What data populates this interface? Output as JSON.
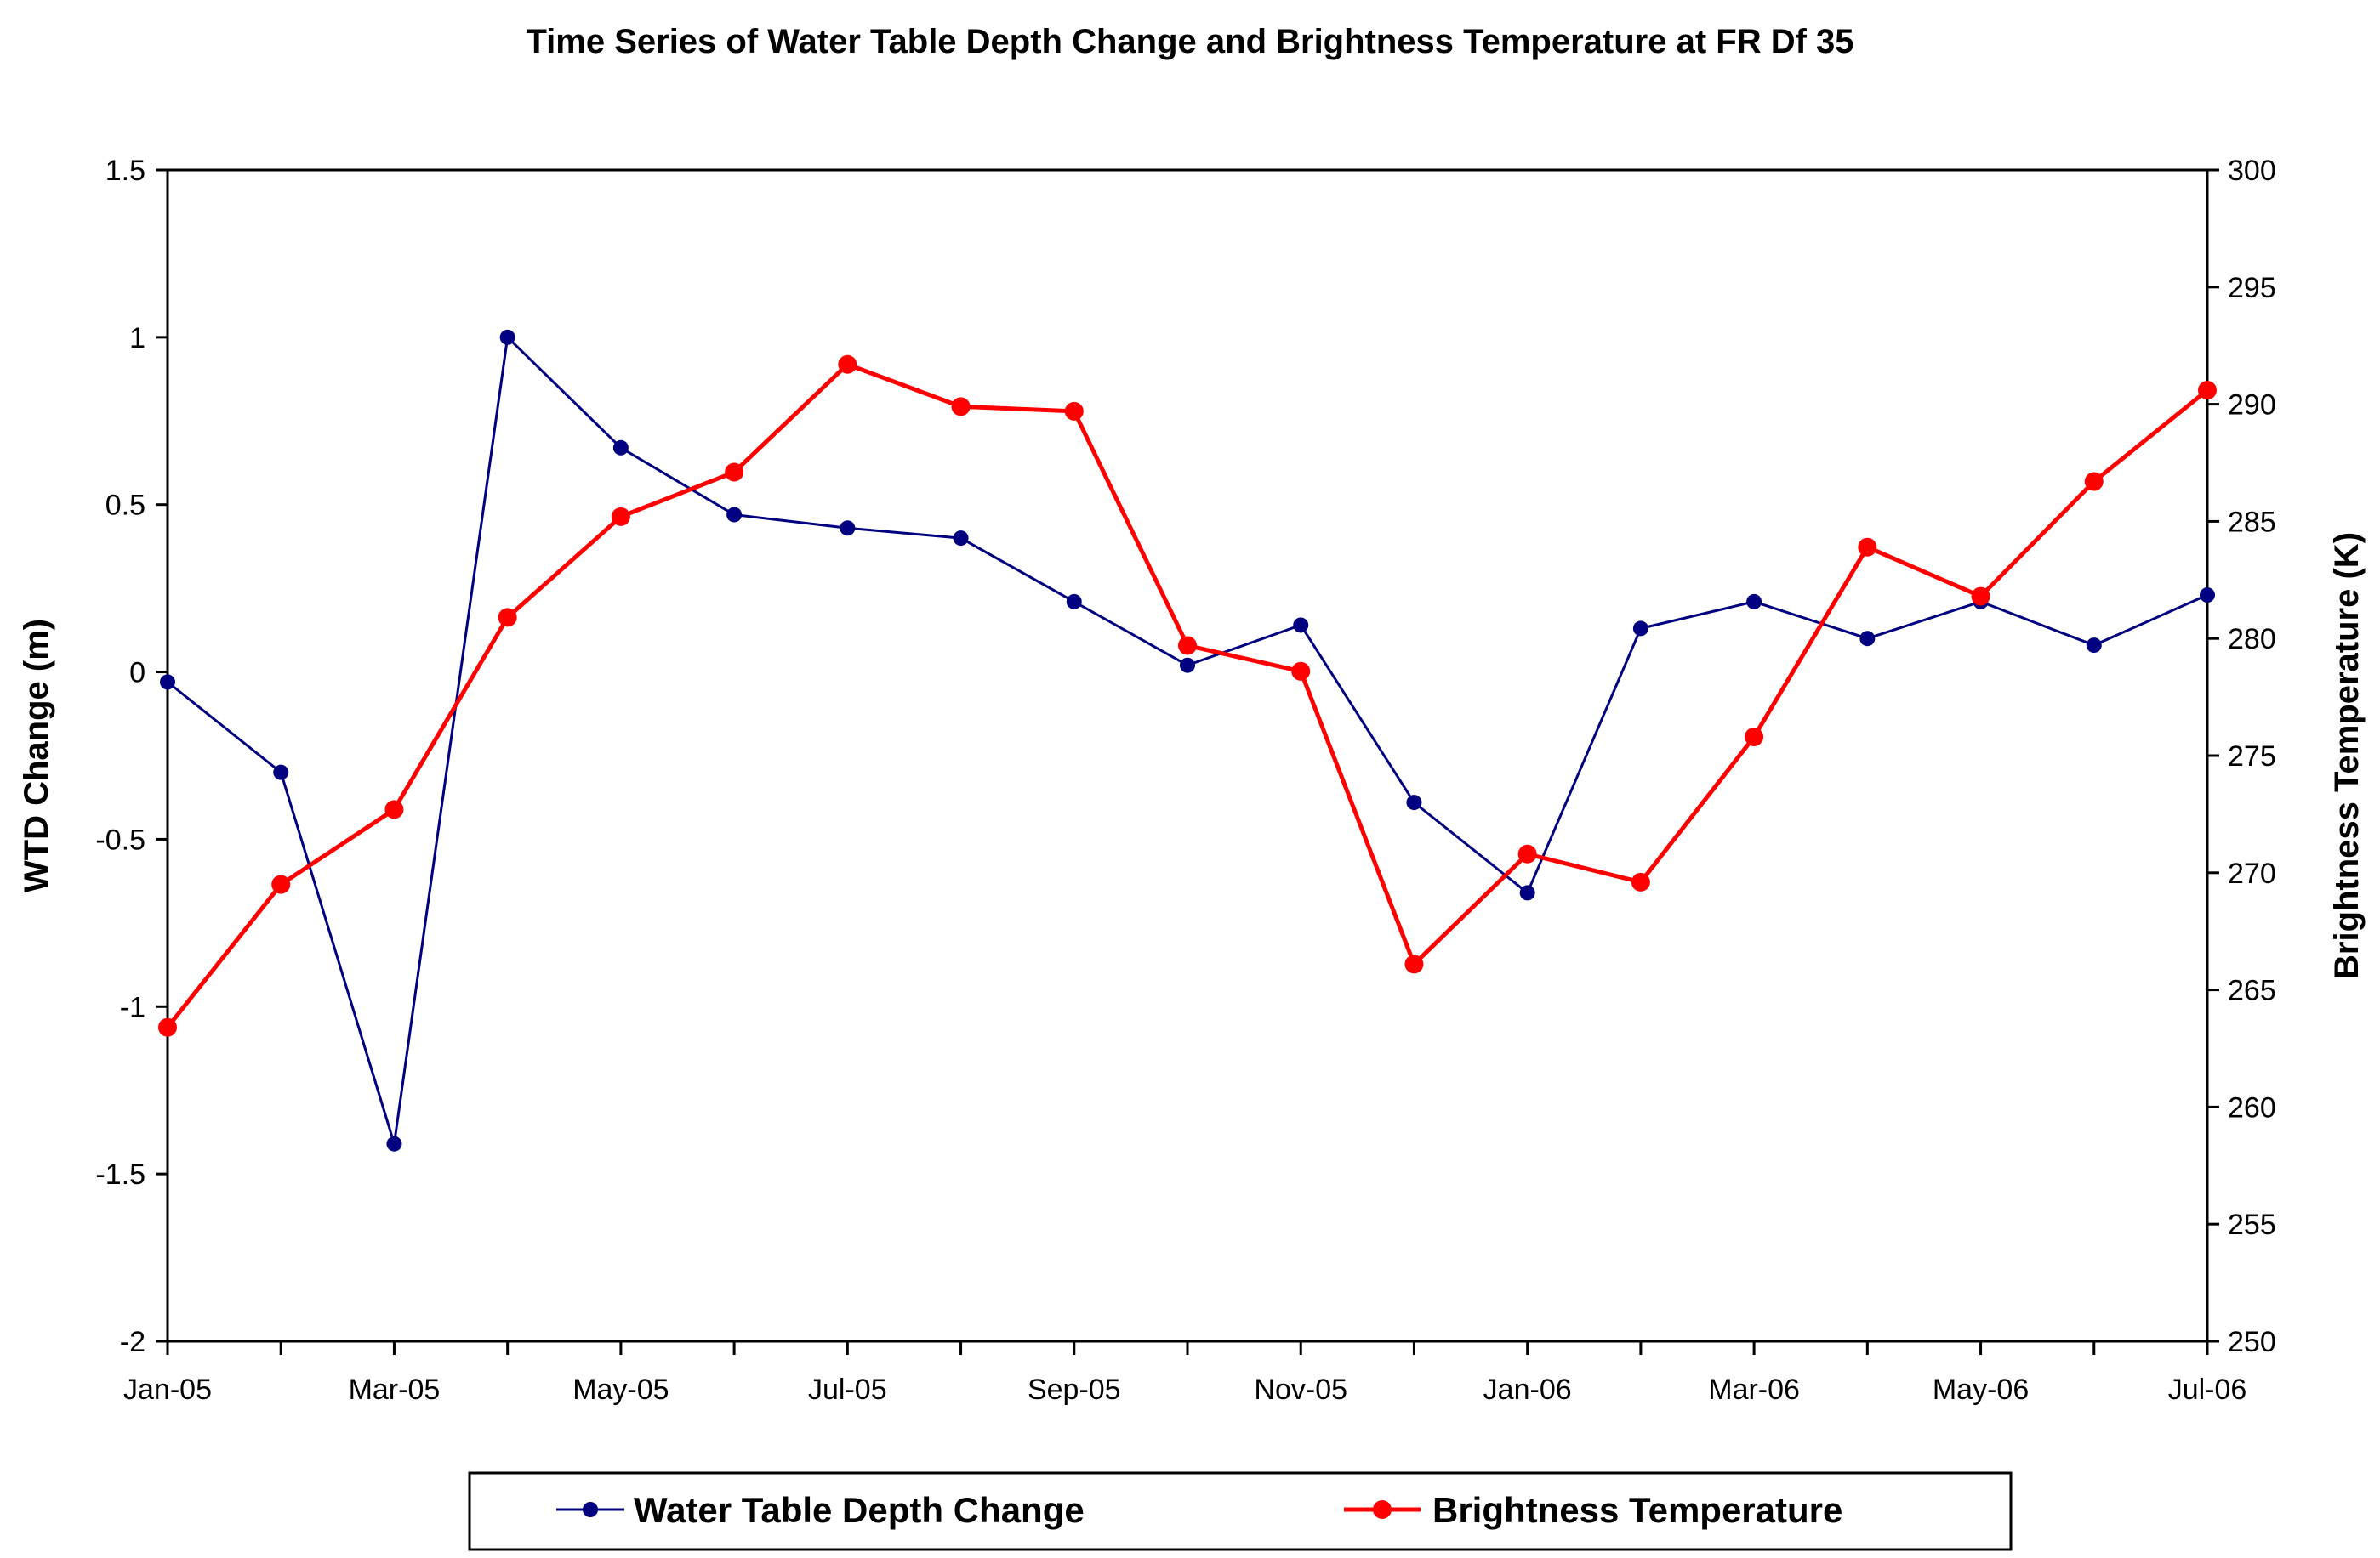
{
  "chart_data": {
    "type": "line",
    "title": "Time Series of Water Table Depth Change and Brightness Temperature at FR Df 35",
    "categories": [
      "Jan-05",
      "Feb-05",
      "Mar-05",
      "Apr-05",
      "May-05",
      "Jun-05",
      "Jul-05",
      "Aug-05",
      "Sep-05",
      "Oct-05",
      "Nov-05",
      "Dec-05",
      "Jan-06",
      "Feb-06",
      "Mar-06",
      "Apr-06",
      "May-06",
      "Jun-06",
      "Jul-06"
    ],
    "x_tick_labels": [
      "Jan-05",
      "",
      "Mar-05",
      "",
      "May-05",
      "",
      "Jul-05",
      "",
      "Sep-05",
      "",
      "Nov-05",
      "",
      "Jan-06",
      "",
      "Mar-06",
      "",
      "May-06",
      "",
      "Jul-06"
    ],
    "y_left": {
      "label": "WTD Change (m)",
      "range": [
        -2,
        1.5
      ],
      "ticks": [
        "-2",
        "-1.5",
        "-1",
        "-0.5",
        "0",
        "0.5",
        "1",
        "1.5"
      ],
      "tick_values": [
        -2,
        -1.5,
        -1,
        -0.5,
        0,
        0.5,
        1,
        1.5
      ]
    },
    "y_right": {
      "label": "Brightness Temperature (K)",
      "range": [
        250,
        300
      ],
      "ticks": [
        "250",
        "255",
        "260",
        "265",
        "270",
        "275",
        "280",
        "285",
        "290",
        "295",
        "300"
      ],
      "tick_values": [
        250,
        255,
        260,
        265,
        270,
        275,
        280,
        285,
        290,
        295,
        300
      ]
    },
    "series": [
      {
        "name": "Water Table Depth Change",
        "axis": "left",
        "color": "#000080",
        "values": [
          -0.03,
          -0.3,
          -1.41,
          1.0,
          0.67,
          0.47,
          0.43,
          0.4,
          0.21,
          0.02,
          0.14,
          -0.39,
          -0.66,
          0.13,
          0.21,
          0.1,
          0.21,
          0.08,
          0.23
        ]
      },
      {
        "name": "Brightness Temperature",
        "axis": "right",
        "color": "#ff0000",
        "values": [
          263.4,
          269.5,
          272.7,
          280.9,
          285.2,
          287.1,
          291.7,
          289.9,
          289.7,
          279.7,
          278.6,
          266.1,
          270.8,
          269.6,
          275.8,
          283.9,
          281.8,
          286.7,
          290.6
        ]
      }
    ],
    "grid": false,
    "legend_position": "bottom"
  }
}
